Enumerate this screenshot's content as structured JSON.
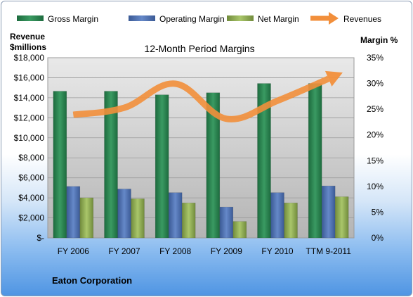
{
  "chart_data": {
    "type": "bar",
    "title": "12-Month Period Margins",
    "footer_label": "Eaton Corporation",
    "y_left_label_line1": "Revenue",
    "y_left_label_line2": "$millions",
    "y_right_label": "Margin %",
    "categories": [
      "FY 2006",
      "FY 2007",
      "FY 2008",
      "FY 2009",
      "FY 2010",
      "TTM 9-2011"
    ],
    "y_left_ticks": [
      "$-",
      "$2,000",
      "$4,000",
      "$6,000",
      "$8,000",
      "$10,000",
      "$12,000",
      "$14,000",
      "$16,000",
      "$18,000"
    ],
    "y_right_ticks": [
      "0%",
      "5%",
      "10%",
      "15%",
      "20%",
      "25%",
      "30%",
      "35%"
    ],
    "ylim_left": [
      0,
      18000
    ],
    "ylim_right": [
      0,
      35
    ],
    "series": [
      {
        "name": "Gross Margin",
        "axis": "right",
        "color": "#2e8b57",
        "values": [
          28.5,
          28.5,
          27.8,
          28.2,
          30.0,
          30.0
        ]
      },
      {
        "name": "Operating Margin",
        "axis": "right",
        "color": "#4f74b8",
        "values": [
          10.0,
          9.5,
          8.8,
          6.0,
          8.8,
          10.1
        ]
      },
      {
        "name": "Net Margin",
        "axis": "right",
        "color": "#9bbb59",
        "values": [
          7.8,
          7.6,
          6.8,
          3.2,
          6.8,
          8.0
        ]
      },
      {
        "name": "Revenues",
        "axis": "left",
        "type": "line",
        "color": "#f28f3b",
        "values": [
          12300,
          13000,
          15400,
          11900,
          13700,
          15900
        ]
      }
    ]
  }
}
